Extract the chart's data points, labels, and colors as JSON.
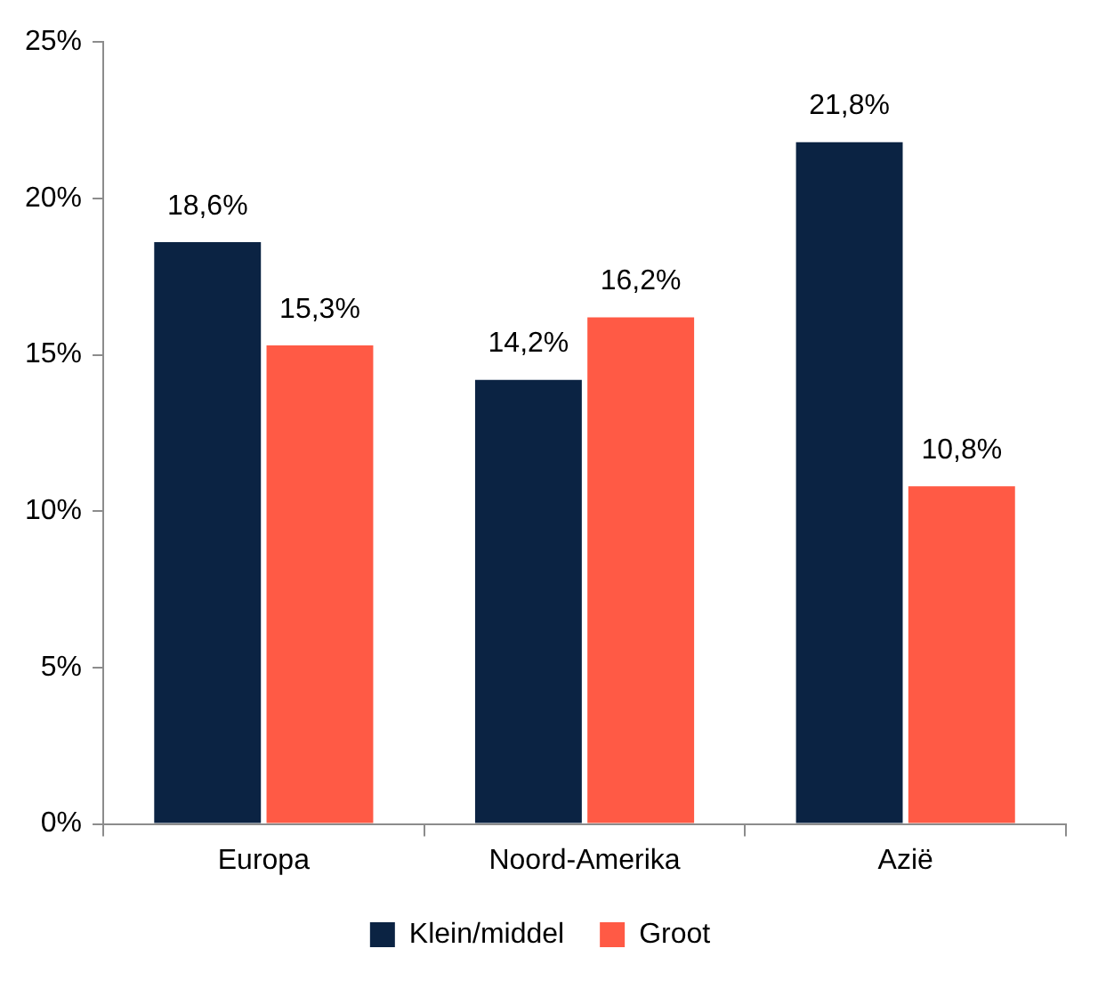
{
  "chart_data": {
    "type": "bar",
    "categories": [
      "Europa",
      "Noord-Amerika",
      "Azië"
    ],
    "series": [
      {
        "name": "Klein/middel",
        "color": "#0b2343",
        "values": [
          18.6,
          14.2,
          21.8
        ],
        "value_labels": [
          "18,6%",
          "14,2%",
          "21,8%"
        ]
      },
      {
        "name": "Groot",
        "color": "#ff5a45",
        "values": [
          15.3,
          16.2,
          10.8
        ],
        "value_labels": [
          "15,3%",
          "16,2%",
          "10,8%"
        ]
      }
    ],
    "ylim": [
      0,
      25
    ],
    "yticks": [
      {
        "value": 0,
        "label": "0%"
      },
      {
        "value": 5,
        "label": "5%"
      },
      {
        "value": 10,
        "label": "10%"
      },
      {
        "value": 15,
        "label": "15%"
      },
      {
        "value": 20,
        "label": "20%"
      },
      {
        "value": 25,
        "label": "25%"
      }
    ],
    "grid": false,
    "legend": "bottom"
  }
}
